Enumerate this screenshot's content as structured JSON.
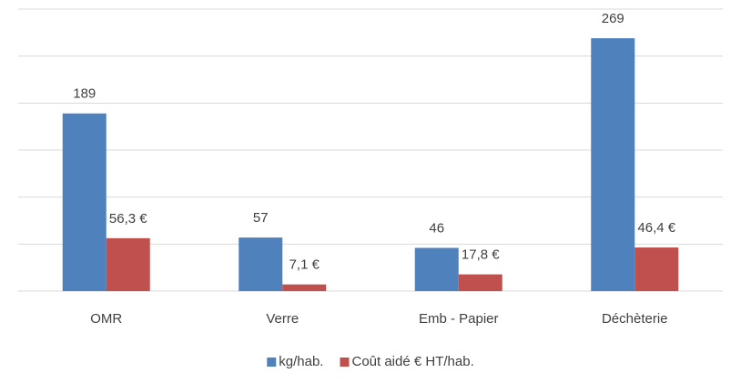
{
  "chart_data": {
    "type": "bar",
    "categories": [
      "OMR",
      "Verre",
      "Emb - Papier",
      "Déchèterie"
    ],
    "series": [
      {
        "name": "kg/hab.",
        "color": "#4f81bd",
        "values": [
          189,
          57,
          46,
          269
        ]
      },
      {
        "name": "Coût aidé € HT/hab.",
        "color": "#c0504d",
        "values": [
          56.3,
          7.1,
          17.8,
          46.4
        ],
        "value_labels": [
          "56,3 €",
          "7,1 €",
          "17,8 €",
          "46,4 €"
        ]
      }
    ],
    "ylim": [
      0,
      300
    ],
    "yticks": [
      0,
      50,
      100,
      150,
      200,
      250,
      300
    ],
    "grid": true,
    "legend": "bottom"
  }
}
